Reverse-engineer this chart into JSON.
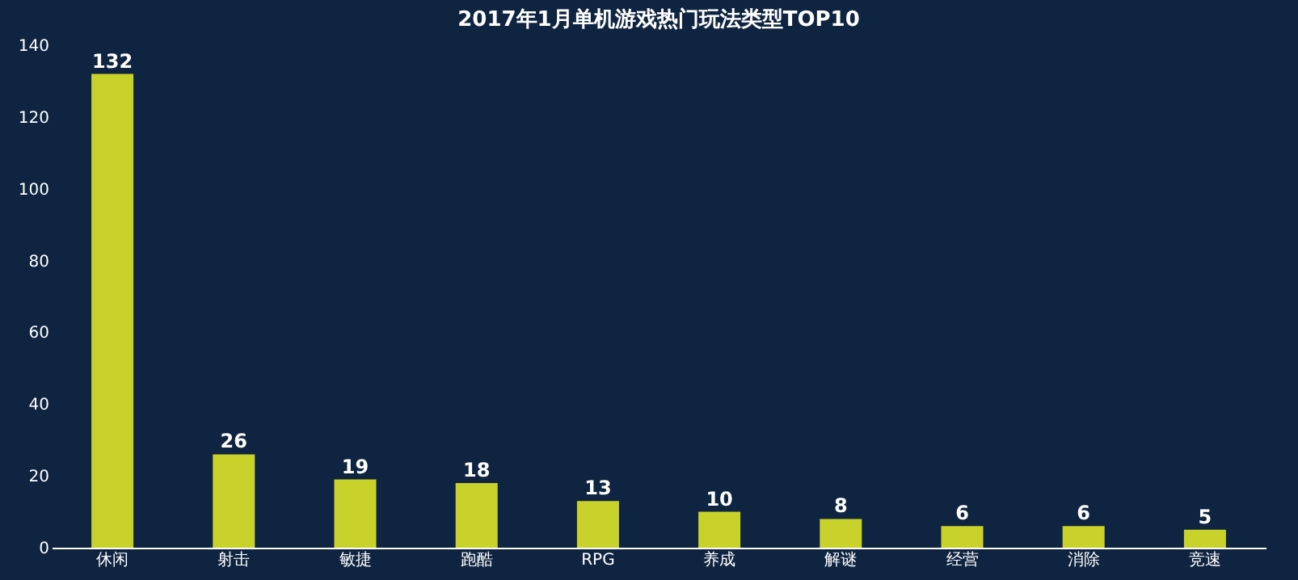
{
  "chart_data": {
    "type": "bar",
    "title": "2017年1月单机游戏热门玩法类型TOP10",
    "categories": [
      "休闲",
      "射击",
      "敏捷",
      "跑酷",
      "RPG",
      "养成",
      "解谜",
      "经营",
      "消除",
      "竞速"
    ],
    "values": [
      132,
      26,
      19,
      18,
      13,
      10,
      8,
      6,
      6,
      5
    ],
    "color": "#c9d22b",
    "ylim": [
      0,
      140
    ],
    "yticks": [
      0,
      20,
      40,
      60,
      80,
      100,
      120,
      140
    ],
    "grid": false,
    "data_labels": true
  }
}
